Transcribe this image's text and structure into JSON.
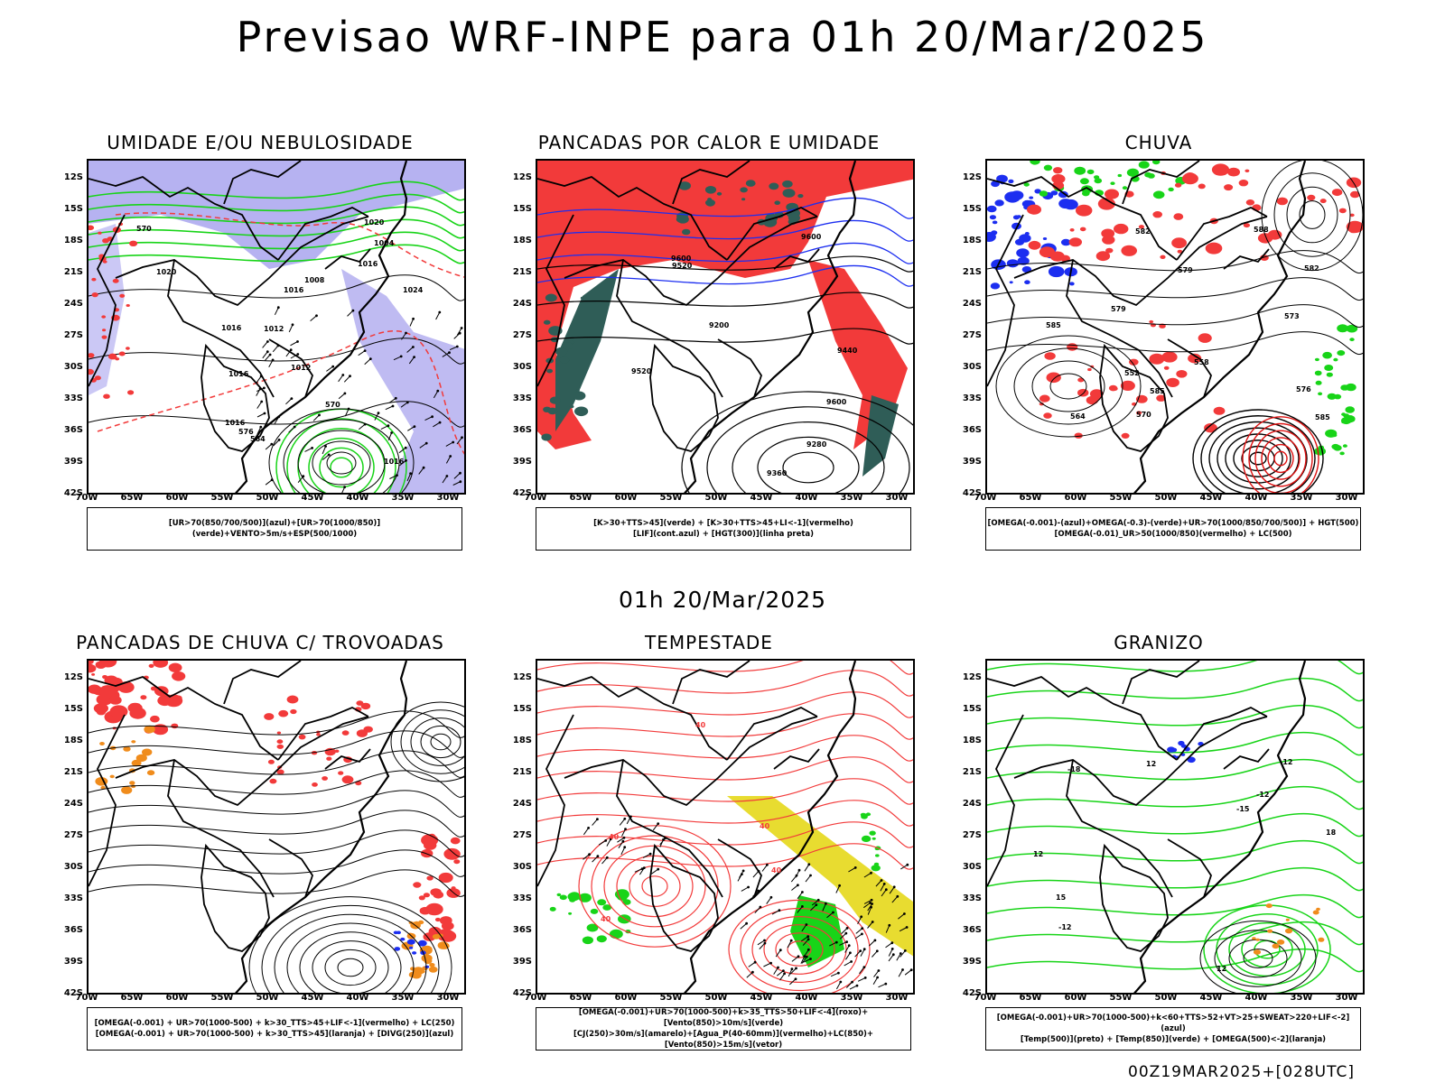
{
  "title": "Previsao WRF-INPE  para 01h 20/Mar/2025",
  "subtitle": "01h 20/Mar/2025",
  "footer": "00Z19MAR2025+[028UTC]",
  "axes": {
    "lat_ticks": [
      "12S",
      "15S",
      "18S",
      "21S",
      "24S",
      "27S",
      "30S",
      "33S",
      "36S",
      "39S",
      "42S"
    ],
    "lon_ticks": [
      "70W",
      "65W",
      "60W",
      "55W",
      "50W",
      "45W",
      "40W",
      "35W",
      "30W"
    ]
  },
  "colors": {
    "red": "#f23a3a",
    "green": "#18d418",
    "blue": "#1c2ef0",
    "lavender": "#a9a4ee",
    "darkteal": "#2f5d57",
    "yellow": "#e8dc30",
    "orange": "#f08c1c",
    "black": "#000000"
  },
  "panels": [
    {
      "id": "umidade",
      "title": "UMIDADE E/OU NEBULOSIDADE",
      "legend": [
        "[UR>70(850/700/500)](azul)+[UR>70(1000/850)](verde)+VENTO>5m/s+ESP(500/1000)"
      ],
      "contour_labels": [
        "1024",
        "1020",
        "1016",
        "1016",
        "1016",
        "1016",
        "1016",
        "1012",
        "1008",
        "1004",
        "1020",
        "1016",
        "1012",
        "570",
        "576",
        "570",
        "564"
      ]
    },
    {
      "id": "pancadas-calor",
      "title": "PANCADAS POR CALOR E UMIDADE",
      "legend": [
        "[K>30+TTS>45](verde) + [K>30+TTS>45+LI<-1](vermelho)",
        "[LIF](cont.azul) + [HGT(300)](linha preta)"
      ],
      "contour_labels": [
        "9600",
        "9600",
        "9600",
        "9520",
        "9520",
        "9440",
        "9360",
        "9280",
        "9200"
      ]
    },
    {
      "id": "chuva",
      "title": "CHUVA",
      "legend": [
        "[OMEGA(-0.001)-(azul)+OMEGA(-0.3)-(verde)+UR>70(1000/850/700/500)] + HGT(500)",
        "[OMEGA(-0.01)_UR>50(1000/850)(vermelho) + LC(500)"
      ],
      "contour_labels": [
        "585",
        "588",
        "585",
        "582",
        "579",
        "576",
        "573",
        "570",
        "564",
        "558",
        "552",
        "585",
        "582",
        "579"
      ]
    },
    {
      "id": "pancadas-trovoadas",
      "title": "PANCADAS DE CHUVA C/ TROVOADAS",
      "legend": [
        "[OMEGA(-0.001) + UR>70(1000-500) + k>30_TTS>45+LIF<-1](vermelho) + LC(250)",
        "[OMEGA(-0.001) + UR>70(1000-500) + k>30_TTS>45](laranja) + [DIVG(250)](azul)"
      ],
      "contour_labels": []
    },
    {
      "id": "tempestade",
      "title": "TEMPESTADE",
      "legend": [
        "[OMEGA(-0.001)+UR>70(1000-500)+k>35_TTS>50+LIF<-4](roxo)+[Vento(850)>10m/s](verde)",
        "[CJ(250)>30m/s](amarelo)+[Agua_P(40-60mm)](vermelho)+LC(850)+[Vento(850)>15m/s](vetor)"
      ],
      "contour_labels": [
        "40",
        "40",
        "40",
        "40",
        "40"
      ]
    },
    {
      "id": "granizo",
      "title": "GRANIZO",
      "legend": [
        "[OMEGA(-0.001)+UR>70(1000-500)+k<60+TTS>52+VT>25+SWEAT>220+LIF<-2](azul)",
        "[Temp(500)](preto) + [Temp(850)](verde) + [OMEGA(500)<-2](laranja)"
      ],
      "contour_labels": [
        "-12",
        "-12",
        "-12",
        "18",
        "12",
        "15",
        "12",
        "12",
        "-18",
        "-15"
      ]
    }
  ]
}
